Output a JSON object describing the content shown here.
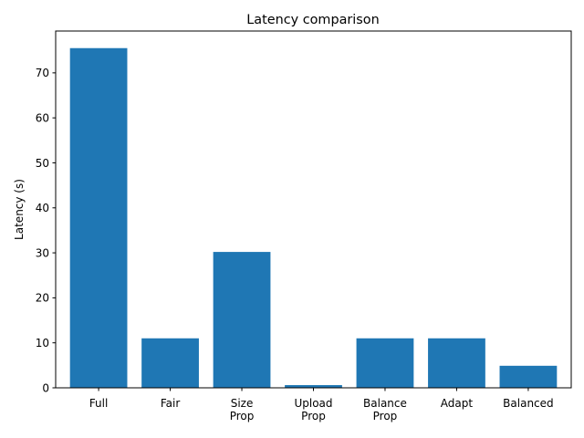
{
  "chart_data": {
    "type": "bar",
    "title": "Latency comparison",
    "xlabel": "",
    "ylabel": "Latency (s)",
    "categories": [
      [
        "Full"
      ],
      [
        "Fair"
      ],
      [
        "Size",
        "Prop"
      ],
      [
        "Upload",
        "Prop"
      ],
      [
        "Balance",
        "Prop"
      ],
      [
        "Adapt"
      ],
      [
        "Balanced"
      ]
    ],
    "values": [
      75.5,
      11.0,
      30.2,
      0.6,
      11.0,
      11.0,
      4.9
    ],
    "ylim": [
      0,
      79.3
    ],
    "yticks": [
      0,
      10,
      20,
      30,
      40,
      50,
      60,
      70
    ],
    "grid": false,
    "legend": "none",
    "bar_color": "#1f77b4"
  }
}
